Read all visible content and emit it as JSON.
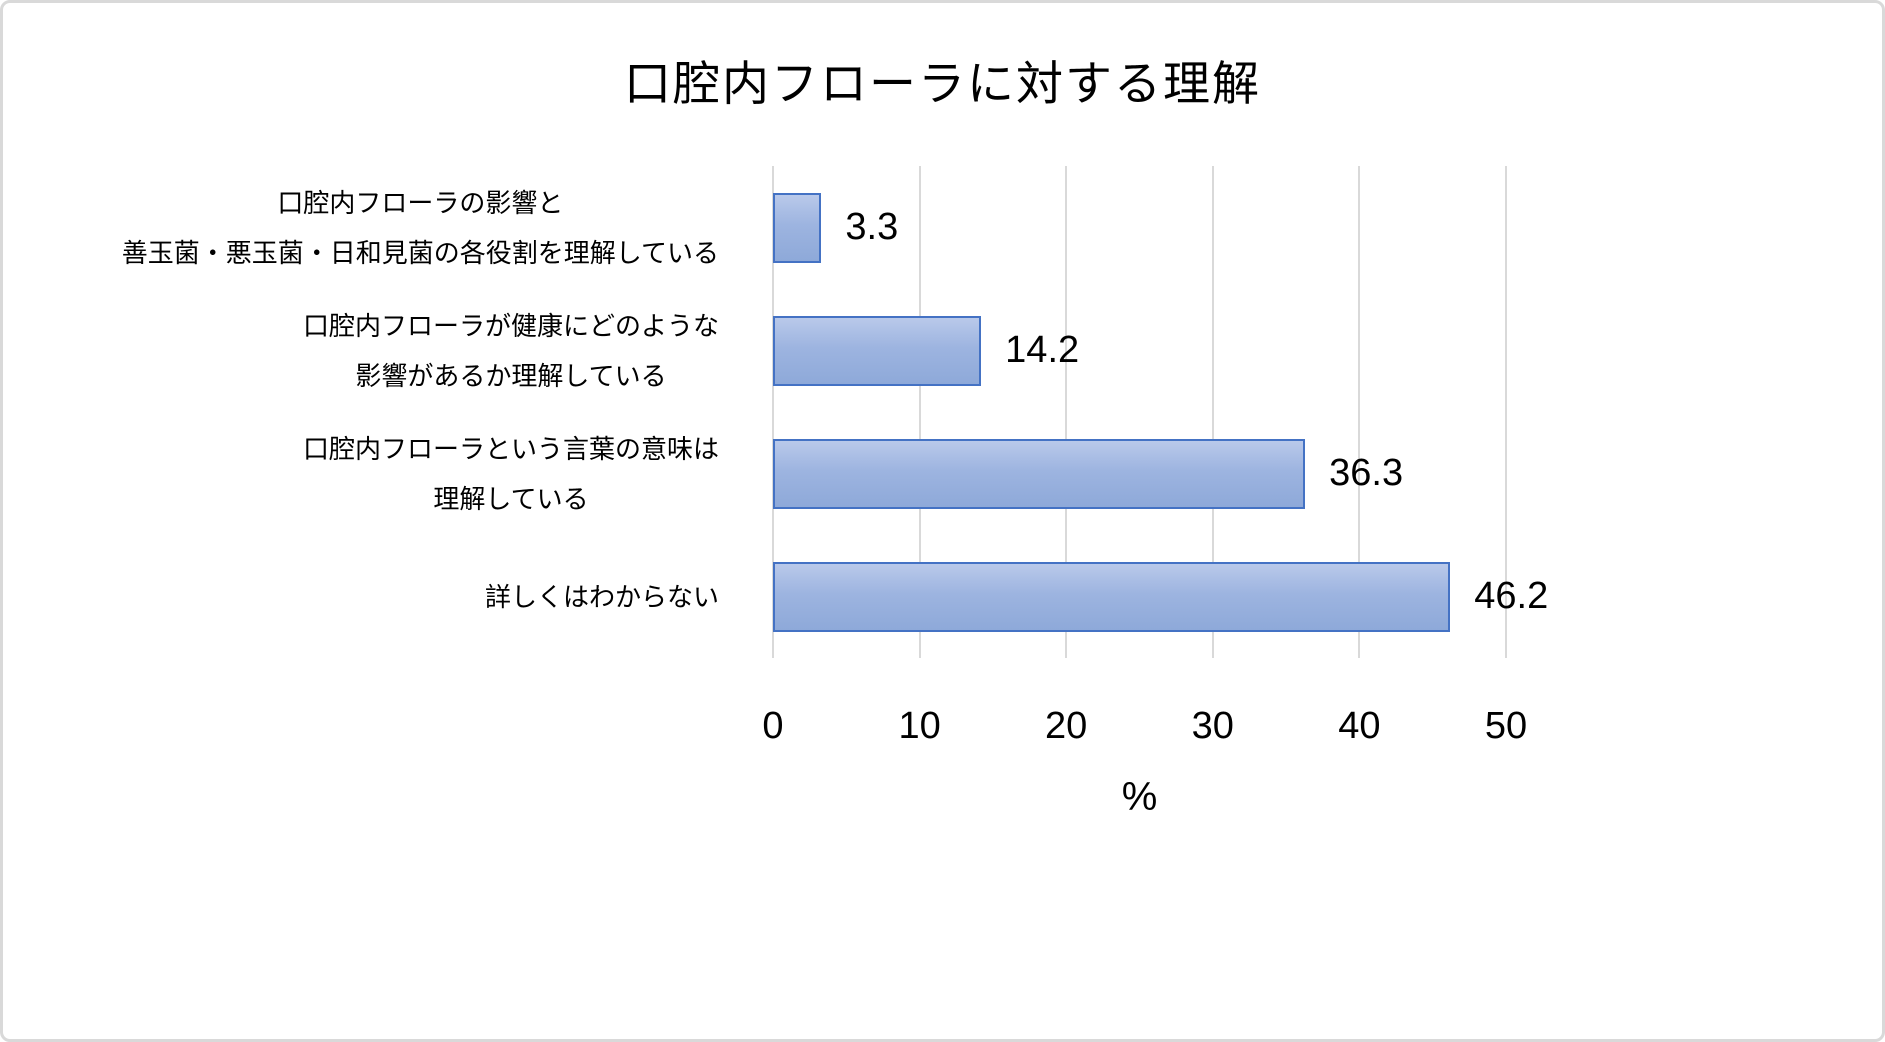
{
  "frame": {
    "background": "#ffffff",
    "border_color": "#d9d9d9"
  },
  "chart_data": {
    "type": "bar",
    "orientation": "horizontal",
    "title": "口腔内フローラに対する理解",
    "categories": [
      "口腔内フローラの影響と\n善玉菌・悪玉菌・日和見菌の各役割を理解している",
      "口腔内フローラが健康にどのような\n影響があるか理解している",
      "口腔内フローラという言葉の意味は\n理解している",
      "詳しくはわからない"
    ],
    "values": [
      3.3,
      14.2,
      36.3,
      46.2
    ],
    "value_labels": [
      "3.3",
      "14.2",
      "36.3",
      "46.2"
    ],
    "xlabel": "%",
    "xlim": [
      0,
      50
    ],
    "xticks": [
      0,
      10,
      20,
      30,
      40,
      50
    ],
    "grid": true,
    "legend": false,
    "colors": {
      "bar_fill_top": "#b9c9ea",
      "bar_fill_bottom": "#8ea9d9",
      "bar_border": "#4472c4",
      "gridline": "#d9d9d9",
      "text": "#000000"
    }
  }
}
